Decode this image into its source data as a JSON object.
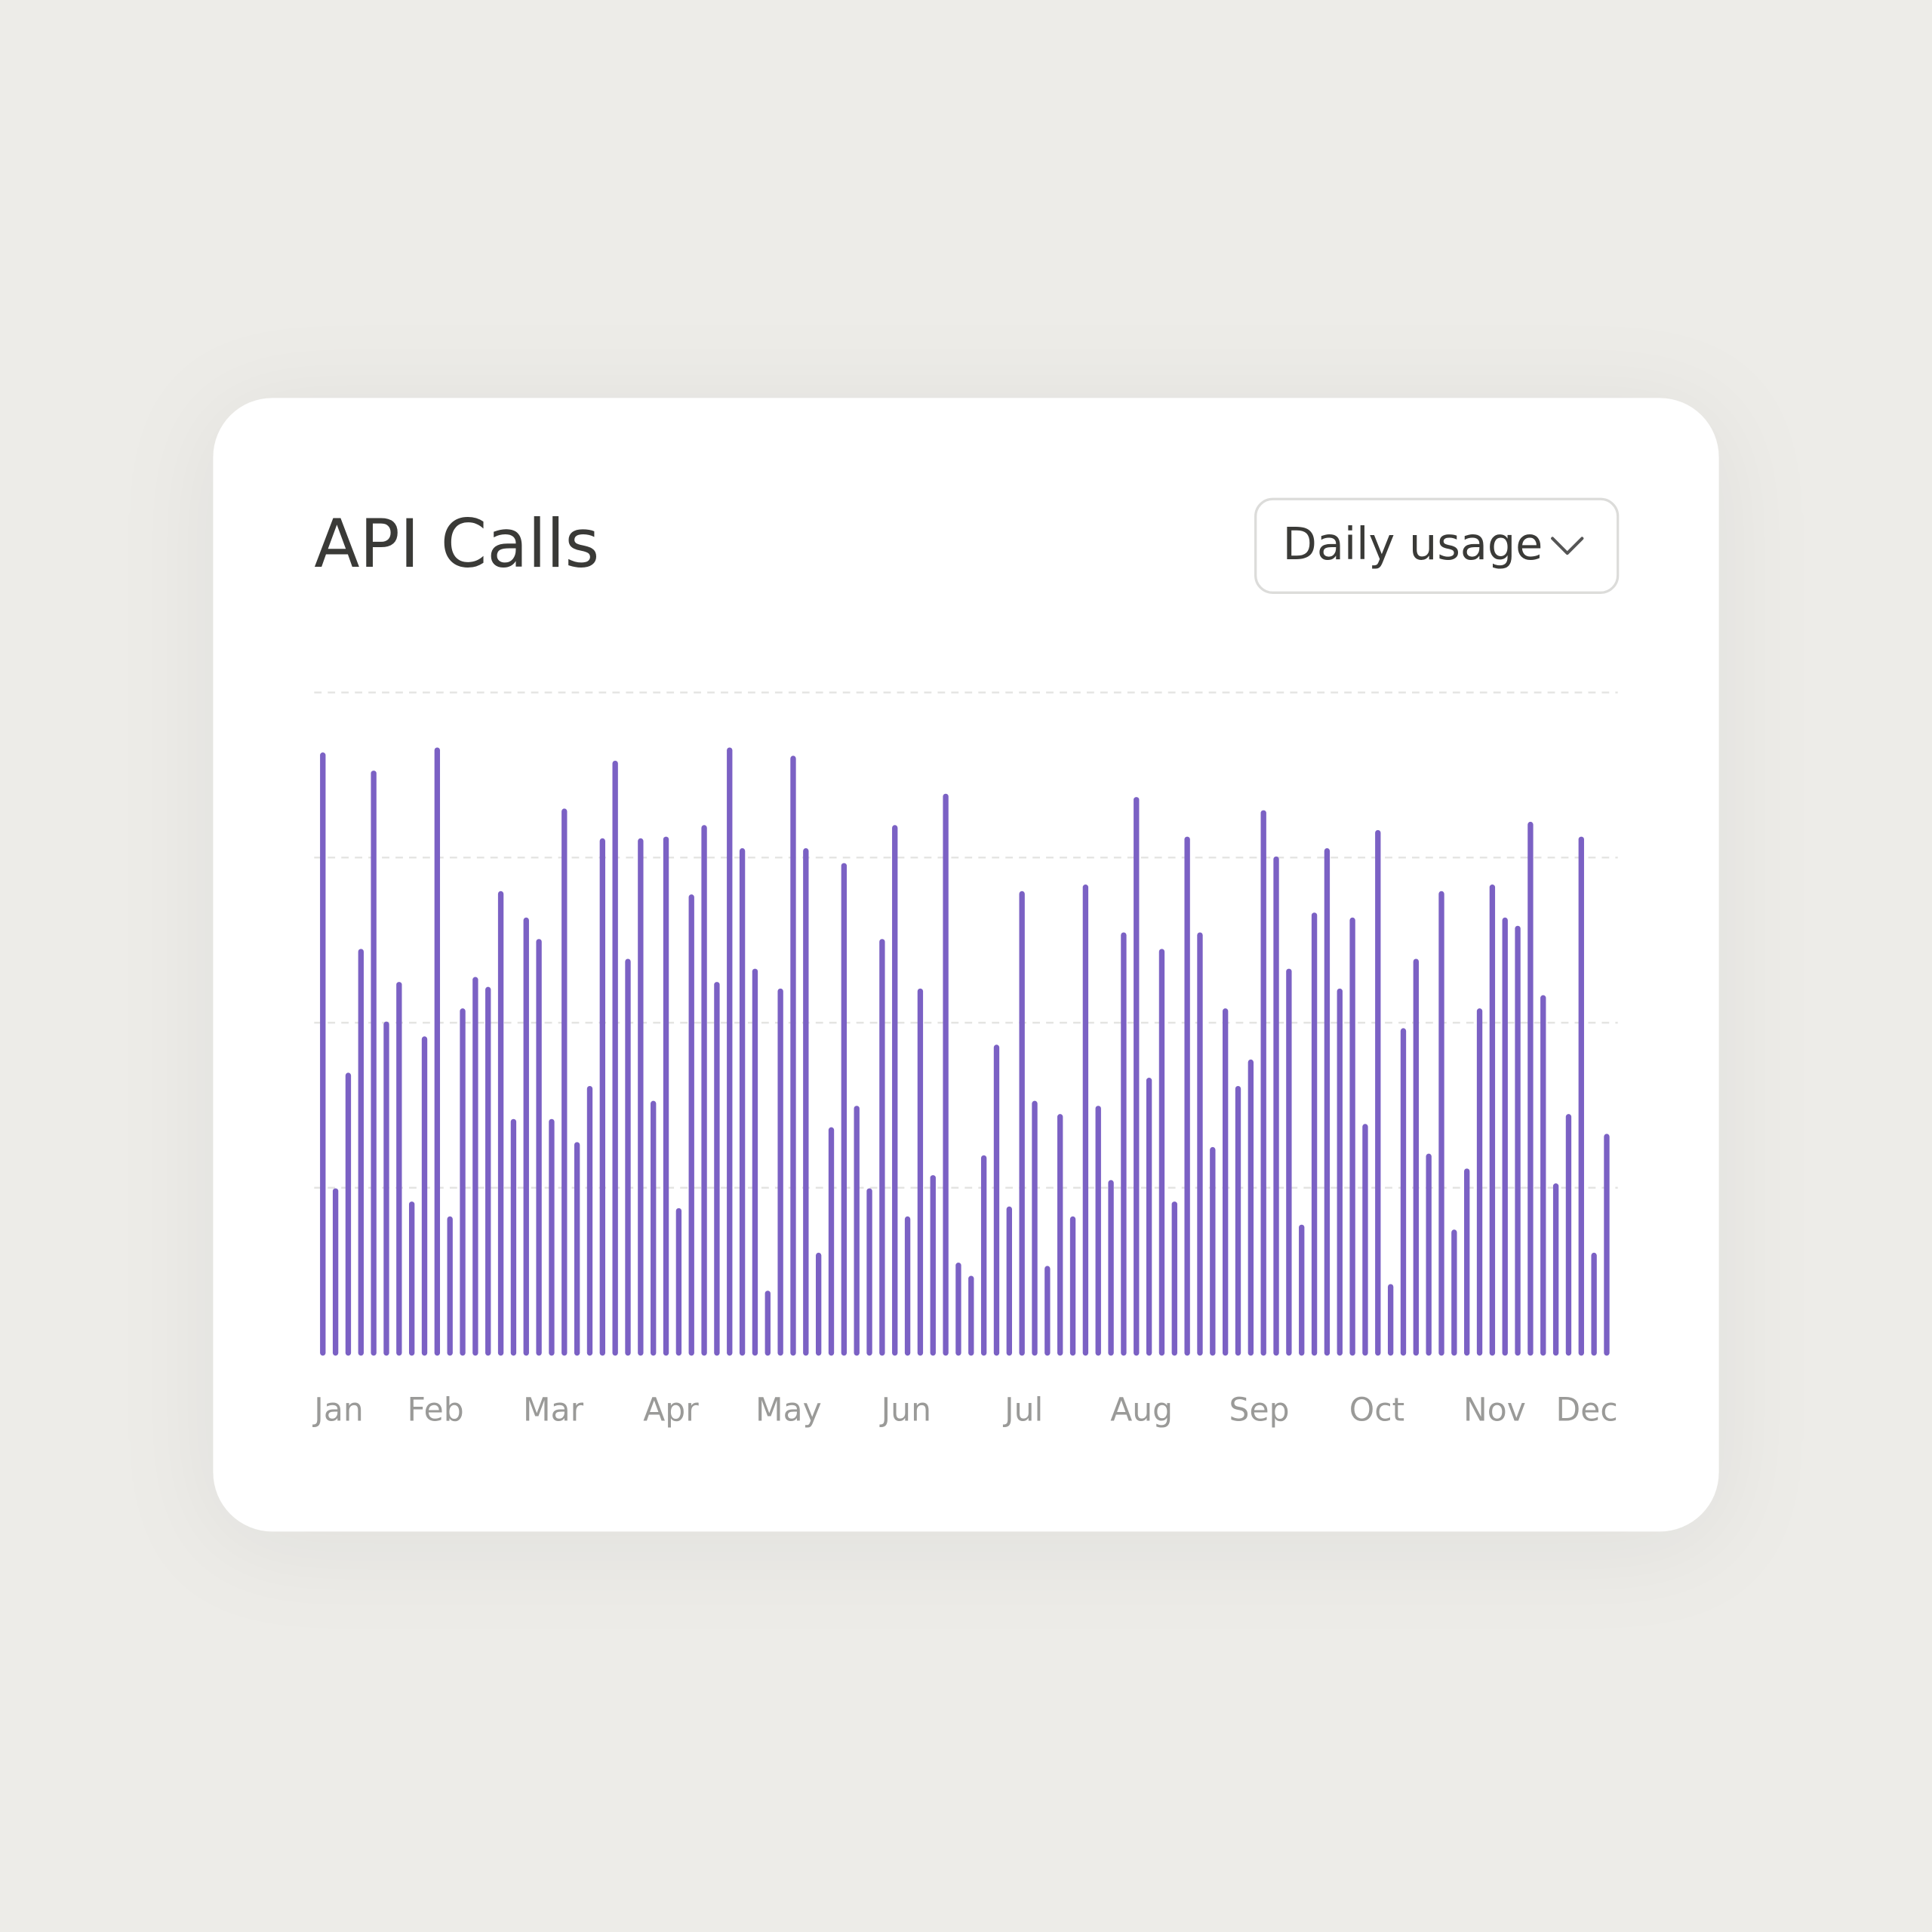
{
  "chart_data": {
    "type": "bar",
    "title": "API Calls",
    "control": "Daily usage",
    "x_labels": [
      "Jan",
      "Feb",
      "Mar",
      "Apr",
      "May",
      "Jun",
      "Jul",
      "Aug",
      "Sep",
      "Oct",
      "Nov",
      "Dec"
    ],
    "values": [
      3.62,
      0.98,
      1.68,
      2.43,
      3.51,
      1.99,
      2.23,
      0.9,
      1.9,
      3.65,
      0.81,
      2.07,
      2.26,
      2.2,
      2.78,
      1.4,
      2.62,
      2.49,
      1.4,
      3.28,
      1.26,
      1.6,
      3.1,
      3.57,
      2.37,
      3.1,
      1.51,
      3.11,
      0.86,
      2.76,
      3.18,
      2.23,
      3.65,
      3.04,
      2.31,
      0.36,
      2.19,
      3.6,
      3.04,
      0.59,
      1.35,
      2.95,
      1.48,
      0.98,
      2.49,
      3.18,
      0.81,
      2.19,
      1.06,
      3.37,
      0.53,
      0.45,
      1.18,
      1.85,
      0.87,
      2.78,
      1.51,
      0.51,
      1.43,
      0.81,
      2.82,
      1.48,
      1.03,
      2.53,
      3.35,
      1.65,
      2.43,
      0.9,
      3.11,
      2.53,
      1.23,
      2.07,
      1.6,
      1.76,
      3.27,
      2.99,
      2.31,
      0.76,
      2.65,
      3.04,
      2.19,
      2.62,
      1.37,
      3.15,
      0.4,
      1.95,
      2.37,
      1.19,
      2.78,
      0.73,
      1.1,
      2.07,
      2.82,
      2.62,
      2.57,
      3.2,
      2.15,
      1.01,
      1.43,
      3.11,
      0.59,
      1.31
    ],
    "color": "#7b61c4",
    "ylim": [
      0,
      4
    ],
    "yticks": [
      1,
      2,
      3,
      4
    ],
    "grid": true
  }
}
